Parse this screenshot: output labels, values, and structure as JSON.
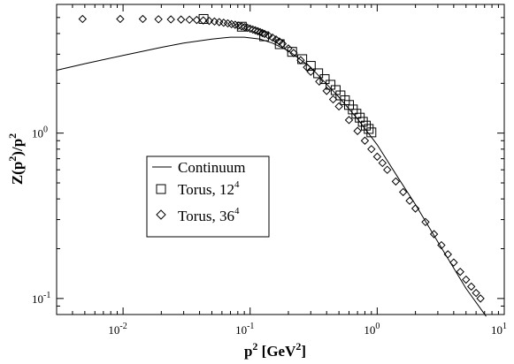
{
  "chart_data": {
    "type": "scatter",
    "xscale": "log",
    "yscale": "log",
    "xlim": [
      0.003,
      10
    ],
    "ylim": [
      0.08,
      6
    ],
    "xlabel": {
      "base": "p",
      "sup": "2",
      "rest": " [GeV",
      "unit_sup": "2",
      "close": "]"
    },
    "ylabel": {
      "a": "Z(p",
      "a_sup": "2",
      "b": ")/p",
      "b_sup": "2"
    },
    "x_ticks": [
      {
        "value": 0.01,
        "base": "10",
        "exp": "-2"
      },
      {
        "value": 0.1,
        "base": "10",
        "exp": "-1"
      },
      {
        "value": 1,
        "base": "10",
        "exp": "0"
      },
      {
        "value": 10,
        "base": "10",
        "exp": "1"
      }
    ],
    "y_ticks": [
      {
        "value": 0.1,
        "base": "10",
        "exp": "-1"
      },
      {
        "value": 1,
        "base": "10",
        "exp": "0"
      }
    ],
    "legend": {
      "position": "center-left",
      "entries": [
        {
          "symbol": "line",
          "label": "Continuum",
          "sup": ""
        },
        {
          "symbol": "square",
          "label": "Torus, 12",
          "sup": "4"
        },
        {
          "symbol": "diamond",
          "label": "Torus, 36",
          "sup": "4"
        }
      ]
    },
    "series": [
      {
        "name": "Continuum",
        "style": "line",
        "x": [
          0.003,
          0.005,
          0.01,
          0.02,
          0.03,
          0.05,
          0.07,
          0.09,
          0.12,
          0.15,
          0.2,
          0.3,
          0.5,
          0.7,
          1,
          1.5,
          2,
          3,
          5,
          7.2
        ],
        "y": [
          2.4,
          2.63,
          2.95,
          3.3,
          3.5,
          3.7,
          3.8,
          3.8,
          3.7,
          3.5,
          3.15,
          2.5,
          1.65,
          1.22,
          0.85,
          0.52,
          0.37,
          0.22,
          0.115,
          0.078
        ]
      },
      {
        "name": "Torus, 12",
        "style": "square",
        "x": [
          0.043,
          0.086,
          0.129,
          0.171,
          0.214,
          0.257,
          0.3,
          0.343,
          0.386,
          0.429,
          0.471,
          0.514,
          0.557,
          0.6,
          0.643,
          0.686,
          0.729,
          0.771,
          0.814,
          0.857,
          0.9
        ],
        "y": [
          4.9,
          4.4,
          3.85,
          3.45,
          3.1,
          2.8,
          2.55,
          2.3,
          2.12,
          1.96,
          1.82,
          1.69,
          1.58,
          1.48,
          1.39,
          1.31,
          1.24,
          1.17,
          1.11,
          1.06,
          1.01
        ]
      },
      {
        "name": "Torus, 36",
        "style": "diamond",
        "x": [
          0.0048,
          0.0095,
          0.0143,
          0.019,
          0.0238,
          0.0286,
          0.0333,
          0.038,
          0.0428,
          0.0476,
          0.0524,
          0.0571,
          0.0619,
          0.0667,
          0.0714,
          0.0762,
          0.081,
          0.0857,
          0.0905,
          0.0952,
          0.1,
          0.105,
          0.11,
          0.115,
          0.12,
          0.125,
          0.13,
          0.14,
          0.15,
          0.16,
          0.17,
          0.18,
          0.2,
          0.22,
          0.25,
          0.28,
          0.3,
          0.35,
          0.4,
          0.45,
          0.5,
          0.6,
          0.7,
          0.8,
          0.9,
          1,
          1.1,
          1.2,
          1.4,
          1.6,
          1.8,
          2,
          2.4,
          2.8,
          3.2,
          3.6,
          4,
          4.5,
          5,
          5.5,
          6,
          6.5
        ],
        "y": [
          4.9,
          4.9,
          4.9,
          4.88,
          4.87,
          4.86,
          4.85,
          4.83,
          4.8,
          4.77,
          4.73,
          4.69,
          4.65,
          4.61,
          4.56,
          4.52,
          4.47,
          4.42,
          4.37,
          4.33,
          4.28,
          4.23,
          4.18,
          4.13,
          4.08,
          4.03,
          3.98,
          3.88,
          3.78,
          3.68,
          3.58,
          3.47,
          3.25,
          3.05,
          2.76,
          2.5,
          2.35,
          2.05,
          1.8,
          1.6,
          1.45,
          1.2,
          1.03,
          0.9,
          0.8,
          0.72,
          0.66,
          0.6,
          0.51,
          0.44,
          0.39,
          0.35,
          0.29,
          0.245,
          0.21,
          0.185,
          0.165,
          0.145,
          0.13,
          0.118,
          0.108,
          0.1
        ]
      }
    ]
  }
}
